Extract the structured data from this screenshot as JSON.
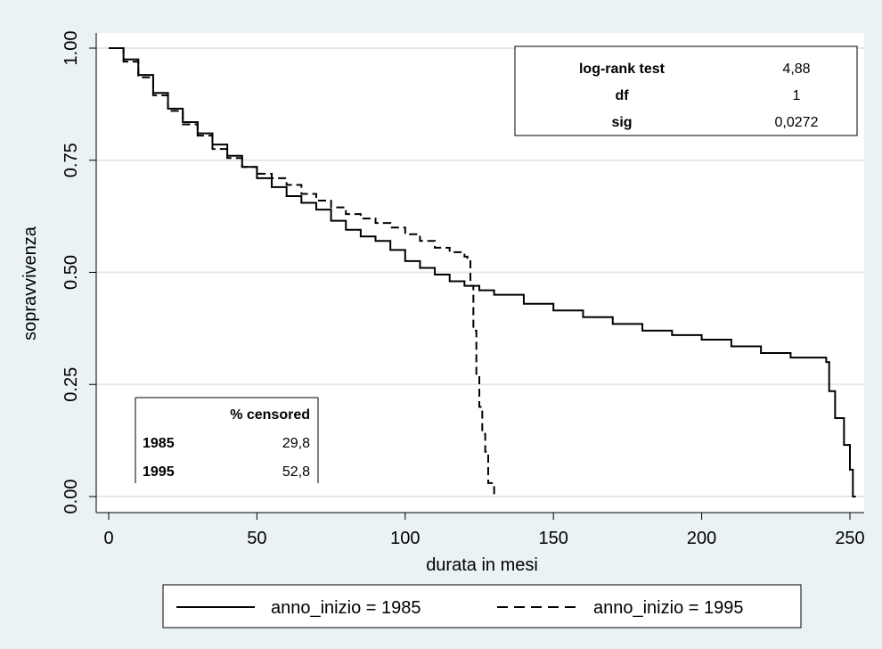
{
  "chart_data": {
    "type": "line",
    "xlabel": "durata in mesi",
    "ylabel": "sopravvivenza",
    "xlim": [
      0,
      250
    ],
    "ylim": [
      0,
      1
    ],
    "xticks": [
      "0",
      "50",
      "100",
      "150",
      "200",
      "250"
    ],
    "yticks": [
      "0.00",
      "0.25",
      "0.50",
      "0.75",
      "1.00"
    ],
    "grid": "horizontal",
    "series": [
      {
        "name": "anno_inizio = 1985",
        "style": "solid",
        "x": [
          0,
          5,
          10,
          15,
          20,
          25,
          30,
          35,
          40,
          45,
          50,
          55,
          60,
          65,
          70,
          75,
          80,
          85,
          90,
          95,
          100,
          105,
          110,
          115,
          120,
          125,
          130,
          140,
          150,
          160,
          170,
          180,
          190,
          200,
          210,
          220,
          230,
          242,
          243,
          245,
          248,
          250,
          251,
          252
        ],
        "y": [
          1.0,
          0.975,
          0.94,
          0.9,
          0.865,
          0.835,
          0.81,
          0.785,
          0.76,
          0.735,
          0.71,
          0.69,
          0.67,
          0.655,
          0.64,
          0.615,
          0.595,
          0.58,
          0.57,
          0.55,
          0.525,
          0.51,
          0.495,
          0.48,
          0.47,
          0.46,
          0.45,
          0.43,
          0.415,
          0.4,
          0.385,
          0.37,
          0.36,
          0.35,
          0.335,
          0.32,
          0.31,
          0.3,
          0.235,
          0.175,
          0.115,
          0.06,
          0.0,
          0.0
        ]
      },
      {
        "name": "anno_inizio = 1995",
        "style": "dashed",
        "x": [
          0,
          5,
          10,
          15,
          20,
          25,
          30,
          35,
          40,
          45,
          50,
          55,
          60,
          65,
          70,
          75,
          80,
          85,
          90,
          95,
          100,
          105,
          110,
          115,
          120,
          121,
          122,
          123,
          124,
          125,
          126,
          127,
          128,
          130
        ],
        "y": [
          1.0,
          0.97,
          0.935,
          0.895,
          0.86,
          0.83,
          0.805,
          0.775,
          0.755,
          0.735,
          0.72,
          0.71,
          0.695,
          0.675,
          0.66,
          0.645,
          0.63,
          0.62,
          0.61,
          0.6,
          0.585,
          0.57,
          0.555,
          0.545,
          0.535,
          0.53,
          0.47,
          0.37,
          0.27,
          0.2,
          0.14,
          0.1,
          0.03,
          0.0
        ]
      }
    ]
  },
  "stats_box": {
    "rows": [
      {
        "label": "log-rank test",
        "value": "4,88"
      },
      {
        "label": "df",
        "value": "1"
      },
      {
        "label": "sig",
        "value": "0,0272"
      }
    ]
  },
  "censored_box": {
    "header": "% censored",
    "rows": [
      {
        "label": "1985",
        "value": "29,8"
      },
      {
        "label": "1995",
        "value": "52,8"
      }
    ]
  },
  "legend": {
    "items": [
      {
        "label": "anno_inizio = 1985",
        "style": "solid"
      },
      {
        "label": "anno_inizio = 1995",
        "style": "dashed"
      }
    ]
  },
  "colors": {
    "background": "#eaf2f3",
    "plot_background": "#ffffff",
    "line": "#000000",
    "grid": "#e2e9ea"
  }
}
